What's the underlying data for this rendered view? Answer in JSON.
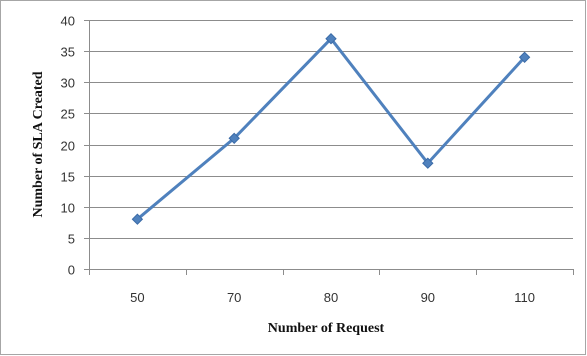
{
  "chart_data": {
    "type": "line",
    "categories": [
      "50",
      "70",
      "80",
      "90",
      "110"
    ],
    "series": [
      {
        "values": [
          8,
          21,
          37,
          17,
          34
        ],
        "color": "#4f81bd",
        "marker": "diamond"
      }
    ],
    "xlabel": "Number of Request",
    "ylabel": "Number of SLA Created",
    "ylim": [
      0,
      40
    ],
    "yticks": [
      0,
      5,
      10,
      15,
      20,
      25,
      30,
      35,
      40
    ],
    "grid": "horizontal",
    "legend": "none"
  }
}
